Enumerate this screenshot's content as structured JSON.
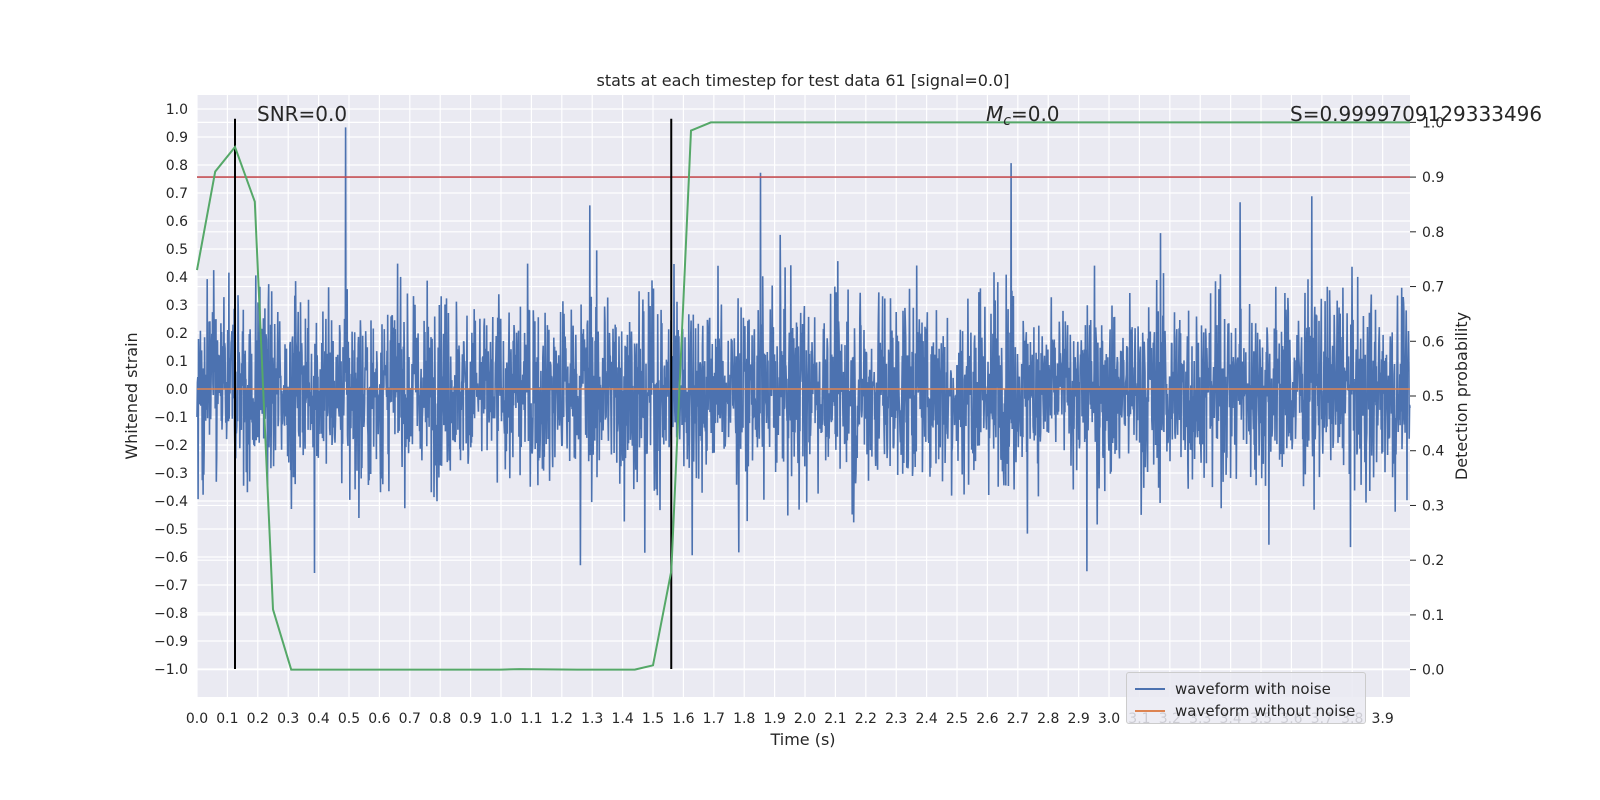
{
  "chart_data": {
    "type": "line",
    "title": "stats at each timestep for test data 61 [signal=0.0]",
    "xlabel": "Time (s)",
    "ylabel_left": "Whitened strain",
    "ylabel_right": "Detection probability",
    "xlim": [
      0.0,
      3.99
    ],
    "ylim_left": [
      -1.1,
      1.05
    ],
    "ylim_right": [
      -0.05,
      1.05
    ],
    "x_ticks": [
      "0.0",
      "0.1",
      "0.2",
      "0.3",
      "0.4",
      "0.5",
      "0.6",
      "0.7",
      "0.8",
      "0.9",
      "1.0",
      "1.1",
      "1.2",
      "1.3",
      "1.4",
      "1.5",
      "1.6",
      "1.7",
      "1.8",
      "1.9",
      "2.0",
      "2.1",
      "2.2",
      "2.3",
      "2.4",
      "2.5",
      "2.6",
      "2.7",
      "2.8",
      "2.9",
      "3.0",
      "3.1",
      "3.2",
      "3.3",
      "3.4",
      "3.5",
      "3.6",
      "3.7",
      "3.8",
      "3.9"
    ],
    "y_ticks_left": [
      "1.0",
      "0.9",
      "0.8",
      "0.7",
      "0.6",
      "0.5",
      "0.4",
      "0.3",
      "0.2",
      "0.1",
      "0.0",
      "−0.1",
      "−0.2",
      "−0.3",
      "−0.4",
      "−0.5",
      "−0.6",
      "−0.7",
      "−0.8",
      "−0.9",
      "−1.0"
    ],
    "y_ticks_right": [
      "1.0",
      "0.9",
      "0.8",
      "0.7",
      "0.6",
      "0.5",
      "0.4",
      "0.3",
      "0.2",
      "0.1",
      "0.0"
    ],
    "annotations": {
      "snr": "SNR=0.0",
      "mc_symbol": "M",
      "mc_sub": "c",
      "mc_value": "=0.0",
      "score": "S=0.9999709129333496"
    },
    "series": [
      {
        "name": "waveform with noise",
        "color": "#4c72b0",
        "axis": "left",
        "style": "dense noise, amplitude roughly ±0.5 with spikes to ±1.0"
      },
      {
        "name": "waveform without noise",
        "color": "#dd8452",
        "axis": "left",
        "constant": 0.0
      },
      {
        "axis": "right",
        "color": "#55a868",
        "x": [
          0.0,
          0.06,
          0.125,
          0.19,
          0.25,
          0.31,
          0.5,
          0.75,
          1.0,
          1.06,
          1.25,
          1.44,
          1.5,
          1.56,
          1.625,
          1.69,
          3.99
        ],
        "y": [
          0.73,
          0.91,
          0.955,
          0.855,
          0.11,
          0.0,
          0.0,
          0.0,
          0.0,
          0.001,
          0.0,
          0.0,
          0.008,
          0.18,
          0.985,
          1.0,
          1.0
        ]
      }
    ],
    "hlines": [
      {
        "axis": "right",
        "y": 0.9,
        "color": "#c44e52"
      }
    ],
    "vlines": [
      {
        "x": 0.125,
        "y": [
          -1.0,
          0.965
        ],
        "color": "#000000"
      },
      {
        "x": 1.56,
        "y": [
          -1.0,
          0.965
        ],
        "color": "#000000"
      }
    ],
    "grid": true,
    "legend_position": "lower-right"
  },
  "legend": {
    "noise_label": "waveform with noise",
    "clean_label": "waveform without noise"
  }
}
